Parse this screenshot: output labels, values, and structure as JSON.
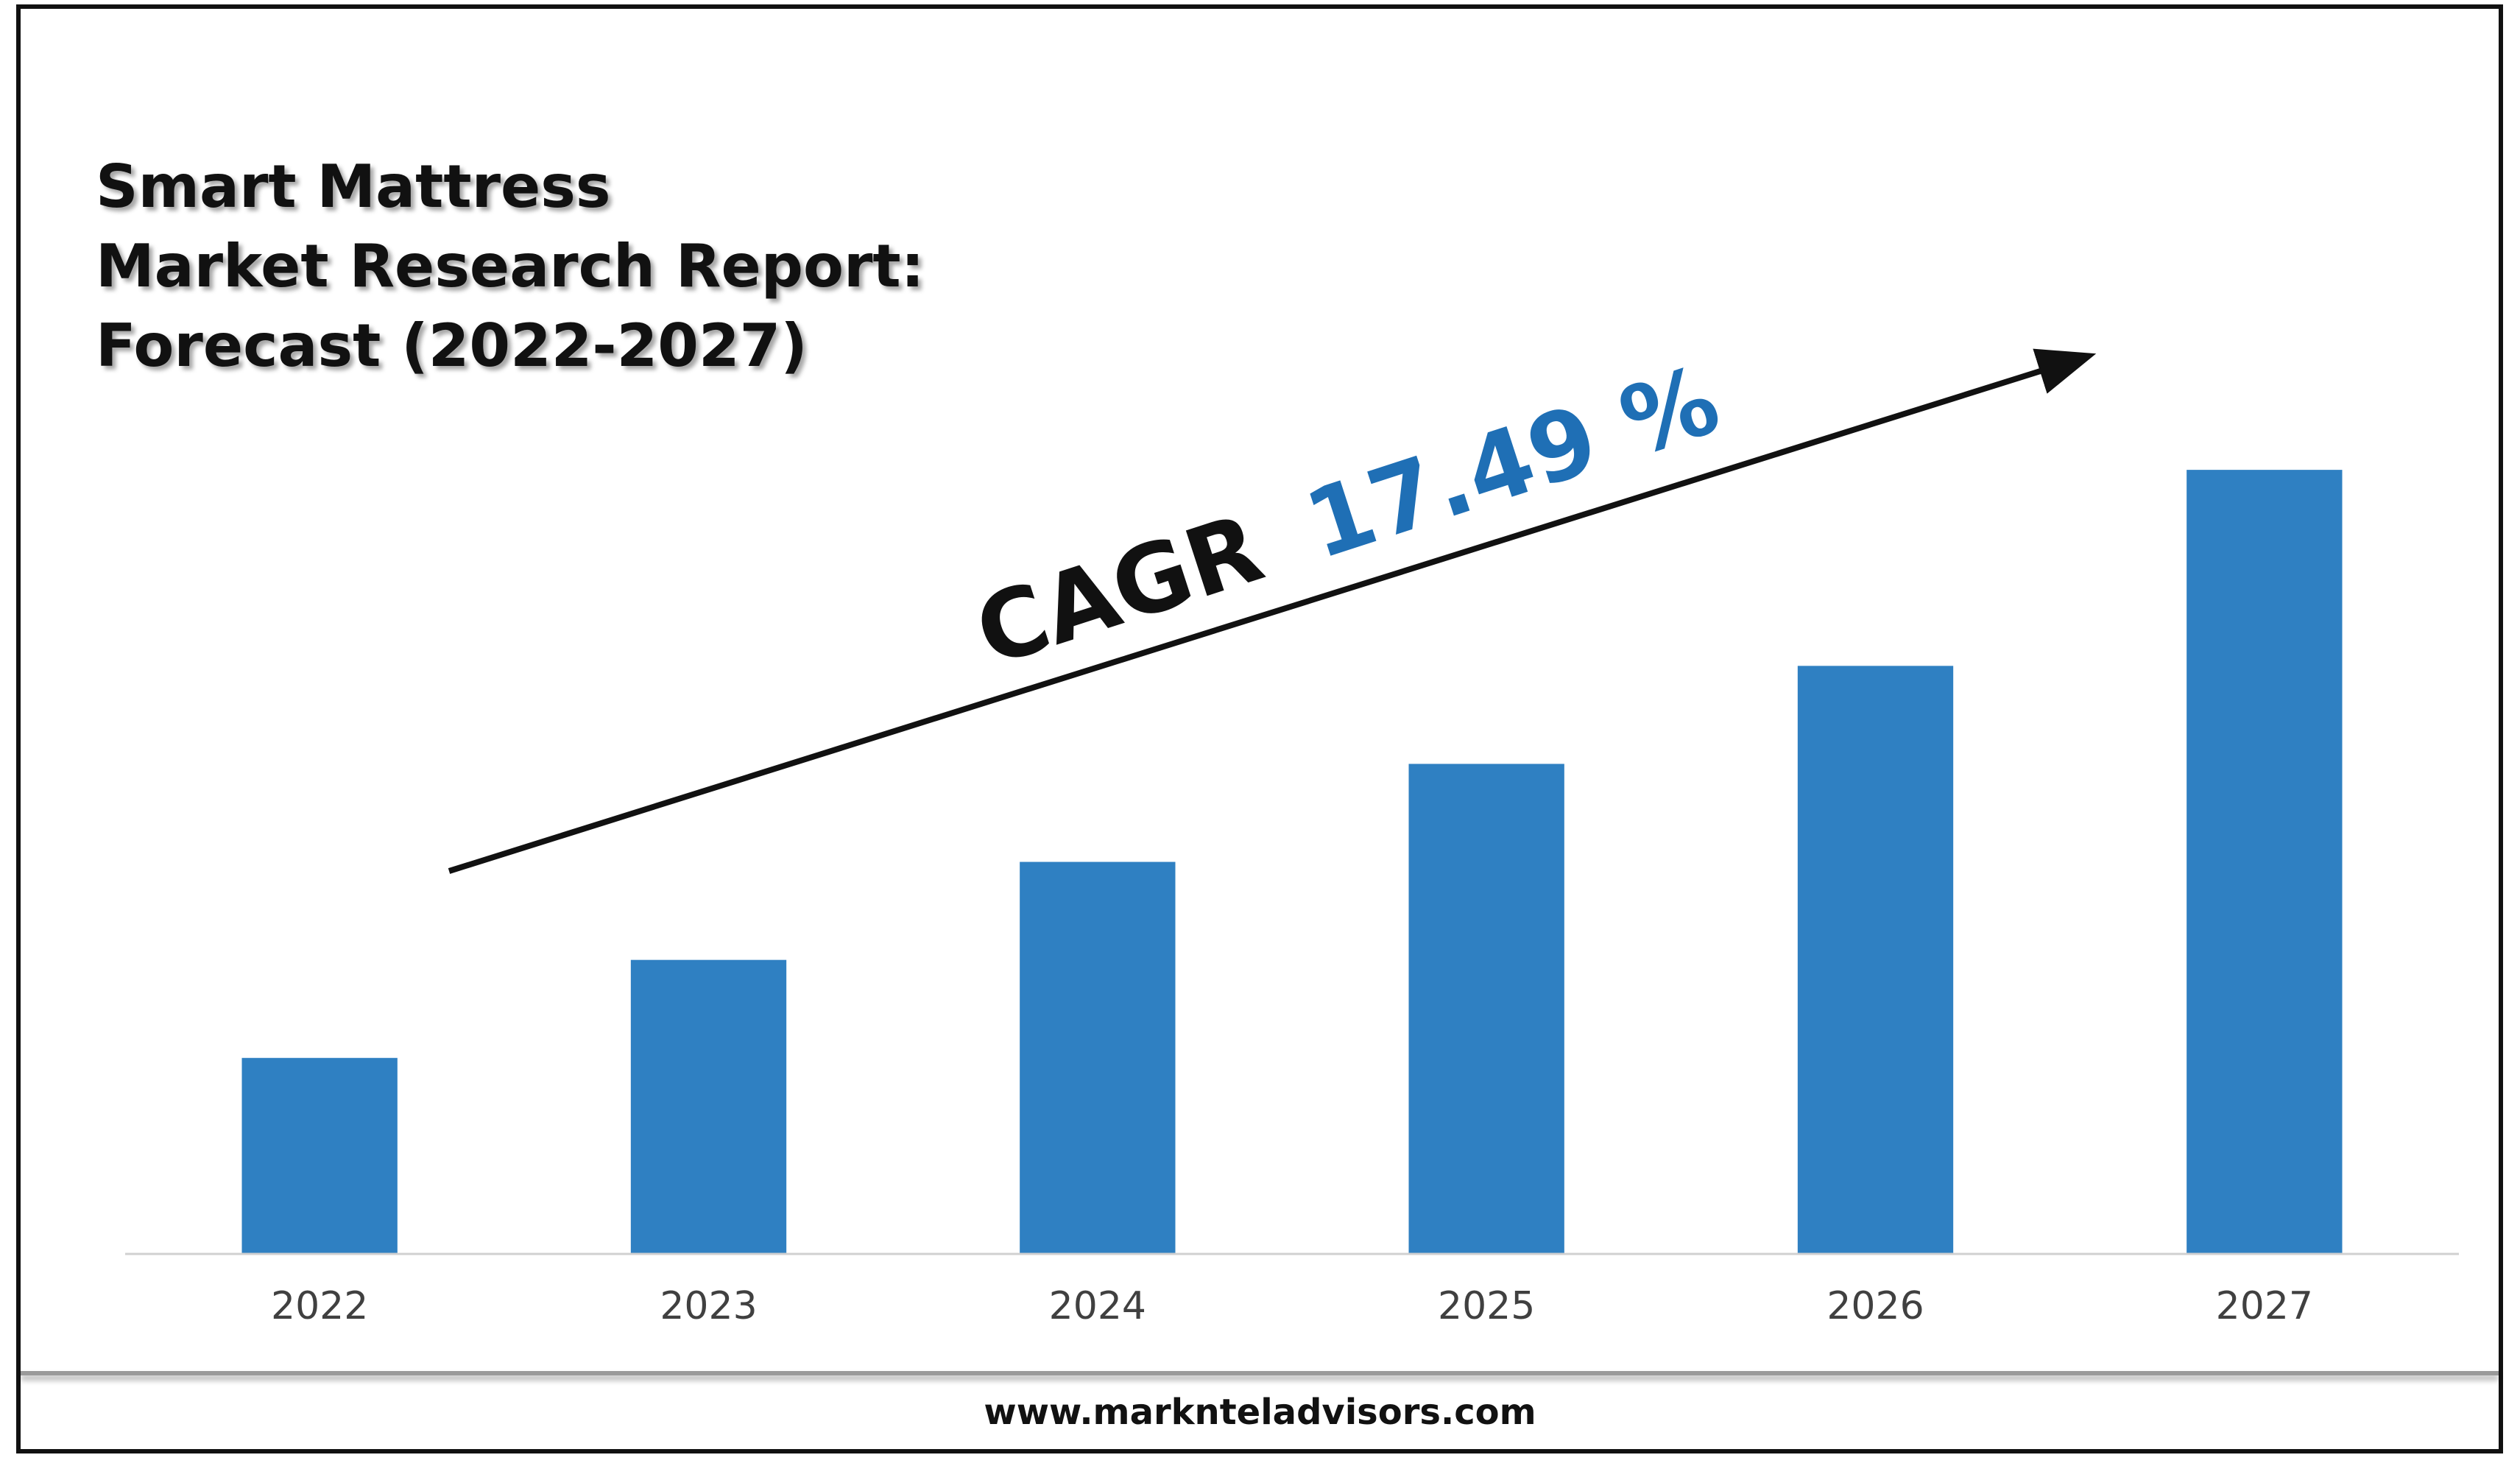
{
  "title_lines": [
    "Smart Mattress",
    "Market Research Report:",
    "Forecast (2022-2027)"
  ],
  "annotation": {
    "prefix": "CAGR",
    "value": "17.49 %",
    "prefix_color": "#111111",
    "value_color": "#1f6fb5"
  },
  "footer": {
    "url": "www.marknteladvisors.com"
  },
  "colors": {
    "bar": "#2f80c2",
    "axis": "#d0d0d0",
    "tick_label": "#404040"
  },
  "chart_data": {
    "type": "bar",
    "categories": [
      "2022",
      "2023",
      "2024",
      "2025",
      "2026",
      "2027"
    ],
    "values": [
      1.0,
      1.5,
      2.0,
      2.5,
      3.0,
      4.0
    ],
    "title": "Smart Mattress Market Research Report: Forecast (2022-2027)",
    "xlabel": "",
    "ylabel": "",
    "ylim": [
      0,
      4.5
    ],
    "y_axis_shown": false,
    "grid": false,
    "legend": "none"
  }
}
